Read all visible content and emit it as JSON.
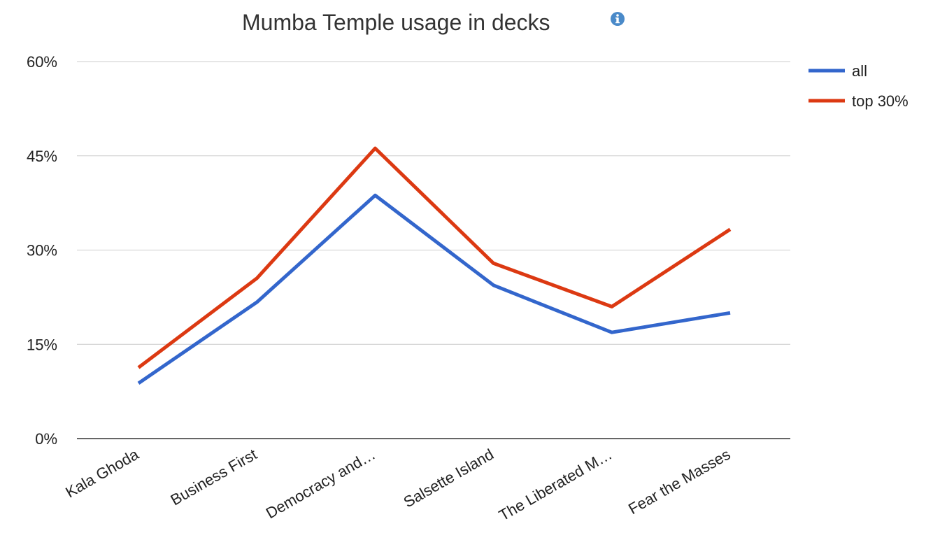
{
  "chart_data": {
    "type": "line",
    "title": "Mumba Temple usage in decks",
    "categories": [
      "Kala Ghoda",
      "Business First",
      "Democracy and…",
      "Salsette Island",
      "The Liberated M…",
      "Fear the Masses"
    ],
    "series": [
      {
        "name": "all",
        "color": "#3366cc",
        "values": [
          8.8,
          21.7,
          38.7,
          24.4,
          16.9,
          20.0
        ]
      },
      {
        "name": "top 30%",
        "color": "#dc3912",
        "values": [
          11.3,
          25.5,
          46.2,
          27.9,
          21.0,
          33.3
        ]
      }
    ],
    "yticks": [
      "0%",
      "15%",
      "30%",
      "45%",
      "60%"
    ],
    "ytick_values": [
      0,
      15,
      30,
      45,
      60
    ],
    "ylim": [
      0,
      60
    ],
    "grid": true,
    "legend_position": "right"
  },
  "icons": {
    "info": "info-icon"
  }
}
